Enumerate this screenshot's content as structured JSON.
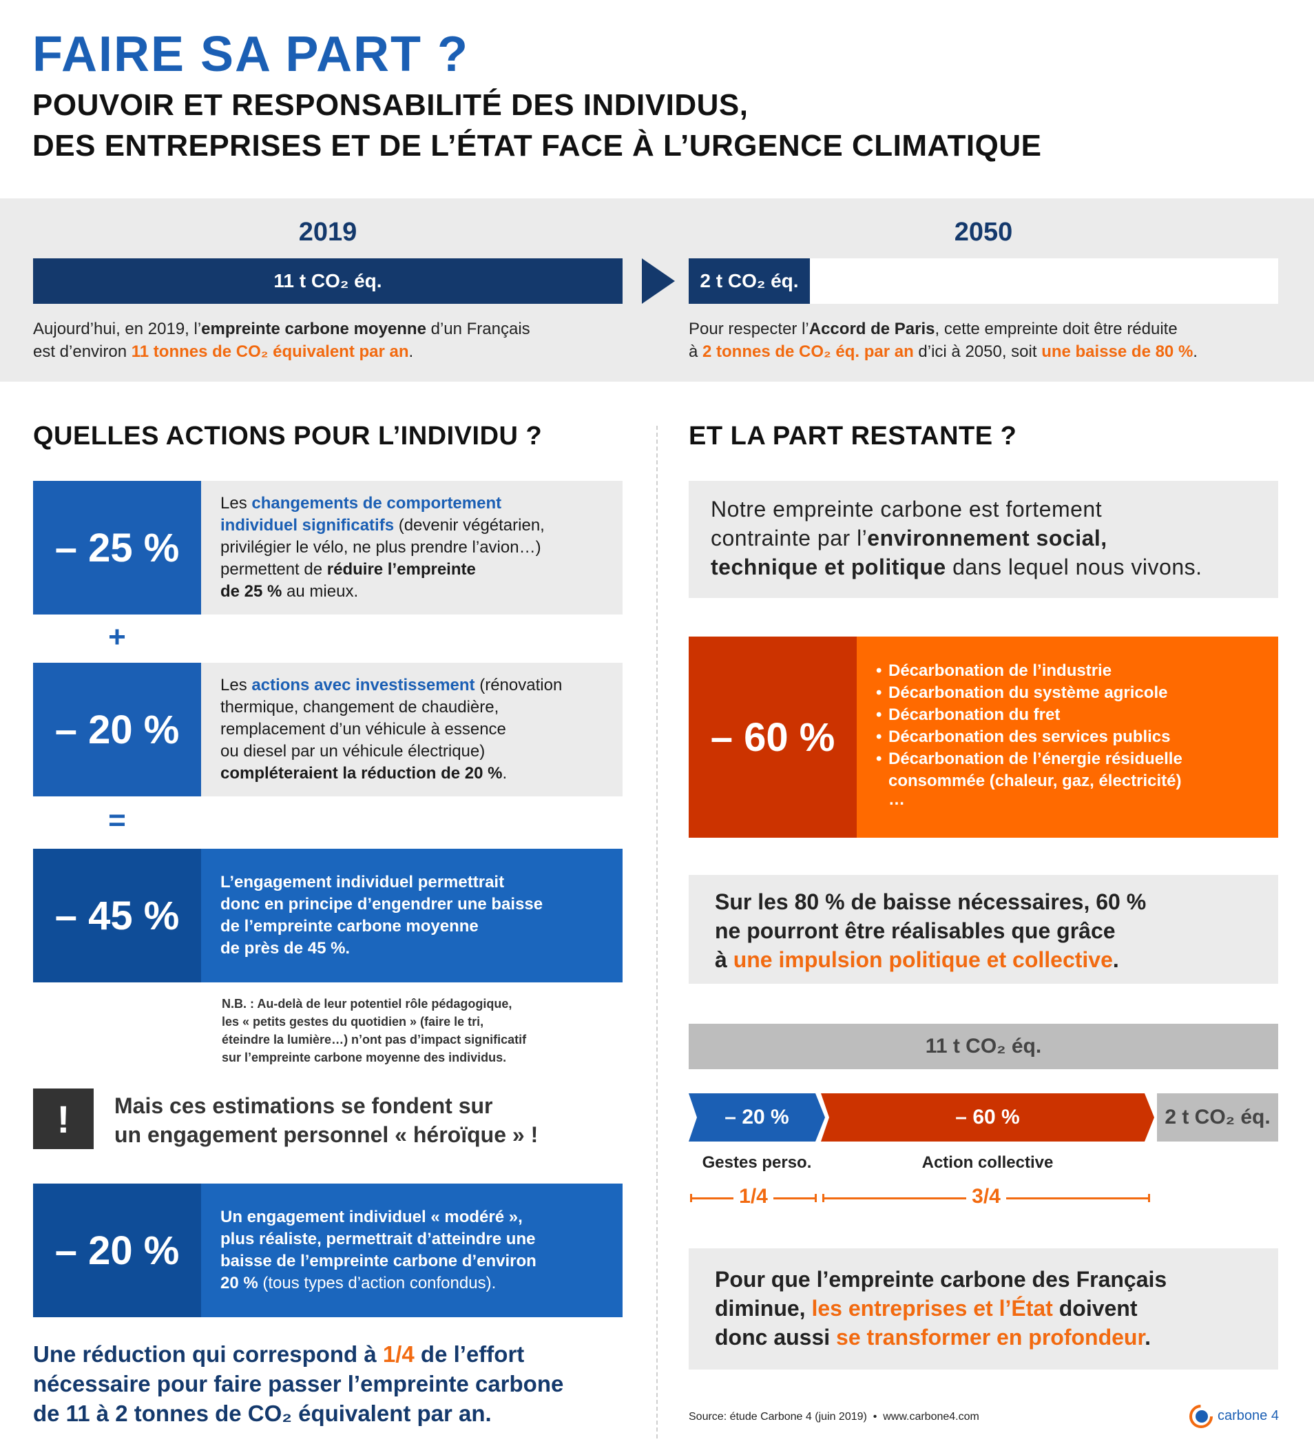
{
  "header": {
    "title": "FAIRE SA PART ?",
    "subtitle_line1": "POUVOIR ET RESPONSABILITÉ DES INDIVIDUS,",
    "subtitle_line2": "DES ENTREPRISES ET DE L’ÉTAT FACE À L’URGENCE CLIMATIQUE"
  },
  "timeline": {
    "y2019": {
      "year": "2019",
      "bar_label": "11 t CO₂ éq.",
      "text_a": "Aujourd’hui, en 2019, l’",
      "text_b": "empreinte carbone moyenne",
      "text_c": " d’un Français",
      "text_d": "est d’environ ",
      "text_e": "11 tonnes de CO₂  équivalent par an",
      "text_f": "."
    },
    "y2050": {
      "year": "2050",
      "bar_label": "2 t CO₂ éq.",
      "text_a": "Pour respecter l’",
      "text_b": "Accord de Paris",
      "text_c": ", cette empreinte doit être réduite",
      "text_d": "à ",
      "text_e": "2 tonnes de CO₂ éq. par an",
      "text_f": " d’ici à 2050, soit ",
      "text_g": "une baisse de 80 %",
      "text_h": "."
    }
  },
  "left": {
    "heading": "QUELLES ACTIONS POUR L’INDIVIDU ?",
    "block1": {
      "pct": "– 25 %",
      "a": "Les ",
      "b": "changements de comportement",
      "c": "individuel significatifs",
      "d": " (devenir végétarien,",
      "e": "privilégier le vélo, ne plus prendre l’avion…)",
      "f": "permettent de ",
      "g": "réduire l’empreinte",
      "h": "de 25 %",
      "i": " au mieux."
    },
    "op_plus": "+",
    "block2": {
      "pct": "– 20 %",
      "a": "Les ",
      "b": "actions avec investissement",
      "c": " (rénovation",
      "d": "thermique, changement de chaudière,",
      "e": "remplacement d’un véhicule à essence",
      "f": "ou diesel par un véhicule électrique)",
      "g": "compléteraient la réduction de 20 %",
      "h": "."
    },
    "op_equals": "=",
    "block3": {
      "pct": "– 45 %",
      "a": "L’engagement individuel permettrait",
      "b": "donc en principe d’engendrer ",
      "c": "une baisse",
      "d": "de l’empreinte carbone moyenne",
      "e": "de près de 45 %",
      "f": "."
    },
    "note": {
      "l1": "N.B. : Au-delà de leur potentiel rôle pédagogique,",
      "l2": "les « petits gestes du quotidien » (faire le tri,",
      "l3": "éteindre la lumière…) n’ont pas d’impact significatif",
      "l4": "sur l’empreinte carbone moyenne des individus."
    },
    "warning": {
      "icon": "!",
      "l1": "Mais ces estimations se fondent sur",
      "l2": "un engagement personnel « héroïque » !"
    },
    "block4": {
      "pct": "– 20 %",
      "a": "Un engagement individuel « modéré »,",
      "b": "plus réaliste, permettrait d’atteindre ",
      "c": "une",
      "d": "baisse de l’empreinte carbone d’environ",
      "e": "20 %",
      "f": " (tous types d’action confondus)."
    },
    "conclusion": {
      "a": "Une réduction qui correspond à ",
      "b": "1/4",
      "c": " de l’effort",
      "d": "nécessaire pour faire passer l’empreinte carbone",
      "e": "de 11 à 2 tonnes de CO₂ équivalent par an."
    }
  },
  "right": {
    "heading": "ET LA PART RESTANTE ?",
    "intro": {
      "a": "Notre empreinte carbone est fortement",
      "b": "contrainte par l’",
      "c": "environnement social,",
      "d": "technique et politique",
      "e": " dans lequel nous vivons."
    },
    "block60": {
      "pct": "– 60 %",
      "items": [
        "Décarbonation de l’industrie",
        "Décarbonation du système agricole",
        "Décarbonation du fret",
        "Décarbonation des services publics",
        "Décarbonation de l’énergie résiduelle"
      ],
      "item_cont": "consommée (chaleur, gaz, électricité)",
      "ellipsis": "…"
    },
    "mid": {
      "a": "Sur les 80 % de baisse nécessaires, 60 %",
      "b": "ne pourront être réalisables que grâce",
      "c": "à ",
      "d": "une impulsion politique et collective",
      "e": "."
    },
    "diagram": {
      "total": "11 t CO₂ éq.",
      "seg1": "– 20 %",
      "seg2": "– 60 %",
      "seg3": "2 t CO₂ éq.",
      "label1": "Gestes perso.",
      "label2": "Action collective",
      "frac1": "1/4",
      "frac2": "3/4"
    },
    "final": {
      "a": "Pour que l’empreinte carbone des Français",
      "b": "diminue, ",
      "c": "les entreprises et l’État",
      "d": " doivent",
      "e": "donc aussi ",
      "f": "se transformer en profondeur",
      "g": "."
    },
    "source": "Source: étude Carbone 4 (juin 2019)  •  www.carbone4.com",
    "logo_text": "carbone 4"
  },
  "colors": {
    "brand_blue": "#1b5fb4",
    "navy": "#14396c",
    "orange": "#f26a10",
    "red_orange": "#cc3300",
    "gray": "#ebebeb"
  }
}
